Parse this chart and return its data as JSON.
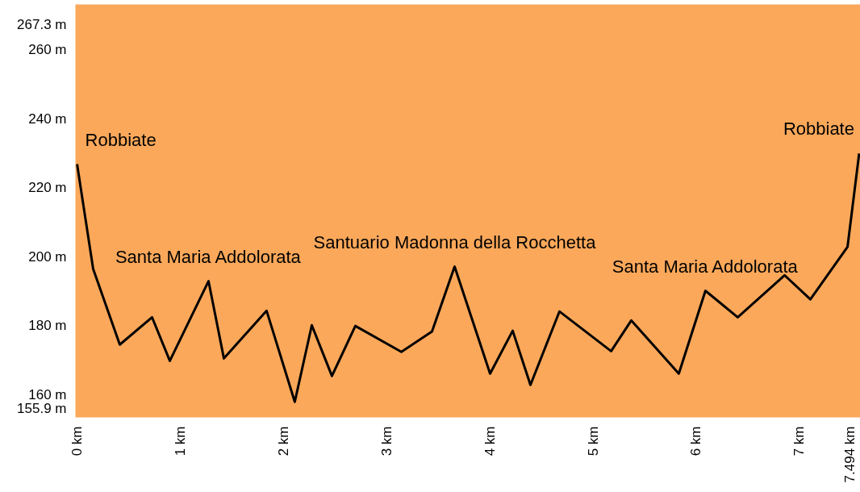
{
  "chart_data": {
    "type": "line",
    "x": [
      0,
      0.156,
      0.414,
      0.727,
      0.899,
      1.274,
      1.423,
      1.837,
      2.11,
      2.275,
      2.47,
      2.697,
      3.143,
      3.44,
      3.659,
      4.003,
      4.222,
      4.394,
      4.675,
      5.176,
      5.371,
      5.832,
      6.09,
      6.403,
      6.857,
      7.107,
      7.467,
      7.58
    ],
    "series": [
      {
        "color": "#000000",
        "values": [
          226.8,
          196.4,
          174.5,
          182.4,
          169.8,
          192.9,
          170.5,
          184.3,
          157.9,
          180.1,
          165.4,
          179.9,
          172.4,
          178.3,
          197.1,
          166.1,
          178.5,
          162.8,
          184.1,
          172.6,
          181.5,
          166.1,
          190.1,
          182.4,
          194.6,
          187.6,
          202.8,
          229.9
        ]
      }
    ],
    "xlim": [
      -0.016,
      7.592
    ],
    "ylim": [
      153.4,
      273.1
    ],
    "xticks": [
      {
        "value": 0,
        "label": "0 km"
      },
      {
        "value": 1,
        "label": "1 km"
      },
      {
        "value": 2,
        "label": "2 km"
      },
      {
        "value": 3,
        "label": "3 km"
      },
      {
        "value": 4,
        "label": "4 km"
      },
      {
        "value": 5,
        "label": "5 km"
      },
      {
        "value": 6,
        "label": "6 km"
      },
      {
        "value": 7,
        "label": "7 km"
      },
      {
        "value": 7.494,
        "label": "7.494 km"
      }
    ],
    "yticks": [
      {
        "value": 155.9,
        "label": "155.9 m"
      },
      {
        "value": 160,
        "label": "160 m"
      },
      {
        "value": 180,
        "label": "180 m"
      },
      {
        "value": 200,
        "label": "200 m"
      },
      {
        "value": 220,
        "label": "220 m"
      },
      {
        "value": 240,
        "label": "240 m"
      },
      {
        "value": 260,
        "label": "260 m"
      },
      {
        "value": 267.3,
        "label": "267.3 m"
      }
    ],
    "annotations": [
      {
        "text": "Robbiate",
        "x": 0,
        "y": 226.8
      },
      {
        "text": "Santa Maria Addolorata",
        "x": 1.274,
        "y": 192.9
      },
      {
        "text": "Santuario Madonna della Rocchetta",
        "x": 3.659,
        "y": 197.1
      },
      {
        "text": "Santa Maria Addolorata",
        "x": 6.09,
        "y": 190.1
      },
      {
        "text": "Robbiate",
        "x": 7.58,
        "y": 229.9
      }
    ],
    "grid": false,
    "marker": "none",
    "line_style": "solid"
  }
}
